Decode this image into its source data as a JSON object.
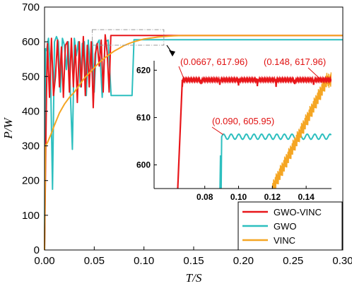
{
  "chart_data": [
    {
      "type": "line",
      "role": "main",
      "xlabel": "T/S",
      "ylabel": "P/W",
      "xlim": [
        0,
        0.3
      ],
      "ylim": [
        0,
        700
      ],
      "xticks": [
        "0.00",
        "0.05",
        "0.10",
        "0.15",
        "0.20",
        "0.25",
        "0.30"
      ],
      "yticks": [
        "0",
        "100",
        "200",
        "300",
        "400",
        "500",
        "600",
        "700"
      ],
      "grid": false,
      "legend_position": "bottom-right",
      "series": [
        {
          "name": "GWO-VINC",
          "color": "#e8161a",
          "x": [
            0,
            0.002,
            0.003,
            0.005,
            0.007,
            0.009,
            0.011,
            0.013,
            0.015,
            0.017,
            0.019,
            0.021,
            0.023,
            0.025,
            0.027,
            0.029,
            0.031,
            0.033,
            0.035,
            0.037,
            0.039,
            0.041,
            0.043,
            0.045,
            0.047,
            0.049,
            0.051,
            0.053,
            0.055,
            0.057,
            0.059,
            0.061,
            0.063,
            0.065,
            0.0667,
            0.08,
            0.1,
            0.12,
            0.14,
            0.148,
            0.16,
            0.18,
            0.2,
            0.22,
            0.24,
            0.26,
            0.28,
            0.3
          ],
          "y": [
            0,
            455,
            595,
            440,
            610,
            445,
            500,
            605,
            470,
            585,
            440,
            590,
            600,
            455,
            610,
            470,
            590,
            425,
            600,
            470,
            615,
            445,
            590,
            470,
            600,
            410,
            565,
            595,
            530,
            605,
            455,
            620,
            570,
            455,
            617.96,
            617.96,
            617.96,
            617.96,
            617.96,
            617.96,
            617.96,
            617.96,
            617.96,
            617.96,
            617.96,
            617.96,
            617.96,
            617.96
          ]
        },
        {
          "name": "GWO",
          "color": "#2dbfbf",
          "x": [
            0,
            0.001,
            0.002,
            0.004,
            0.006,
            0.008,
            0.01,
            0.012,
            0.014,
            0.016,
            0.018,
            0.02,
            0.022,
            0.024,
            0.026,
            0.028,
            0.03,
            0.032,
            0.034,
            0.036,
            0.038,
            0.04,
            0.042,
            0.044,
            0.046,
            0.048,
            0.05,
            0.052,
            0.055,
            0.058,
            0.061,
            0.064,
            0.067,
            0.07,
            0.08,
            0.088,
            0.09,
            0.1,
            0.15,
            0.2,
            0.25,
            0.3
          ],
          "y": [
            0,
            580,
            575,
            610,
            520,
            175,
            600,
            615,
            600,
            455,
            610,
            590,
            520,
            600,
            450,
            290,
            610,
            560,
            600,
            470,
            595,
            600,
            445,
            605,
            520,
            600,
            455,
            590,
            605,
            440,
            600,
            605,
            445,
            445,
            445,
            445,
            605.95,
            605.95,
            605.95,
            605.95,
            605.95,
            605.95
          ]
        },
        {
          "name": "VINC",
          "color": "#f5a623",
          "x": [
            0,
            0.001,
            0.003,
            0.006,
            0.01,
            0.015,
            0.02,
            0.025,
            0.03,
            0.035,
            0.04,
            0.045,
            0.05,
            0.055,
            0.06,
            0.065,
            0.07,
            0.075,
            0.08,
            0.085,
            0.09,
            0.095,
            0.1,
            0.105,
            0.11,
            0.115,
            0.12,
            0.125,
            0.13,
            0.135,
            0.14,
            0.148,
            0.16,
            0.18,
            0.2,
            0.22,
            0.24,
            0.26,
            0.28,
            0.3
          ],
          "y": [
            0,
            300,
            310,
            330,
            360,
            395,
            420,
            440,
            455,
            475,
            495,
            510,
            525,
            540,
            552,
            563,
            573,
            581,
            589,
            595,
            600,
            604,
            608,
            610,
            612,
            614,
            615,
            616,
            617,
            617.5,
            617.8,
            617.96,
            617.96,
            617.96,
            617.96,
            617.96,
            617.96,
            617.96,
            617.96,
            617.96
          ]
        }
      ]
    },
    {
      "type": "line",
      "role": "inset",
      "xlim": [
        0.05,
        0.155
      ],
      "ylim": [
        595,
        622
      ],
      "xticks": [
        "0.08",
        "0.10",
        "0.12",
        "0.14"
      ],
      "yticks": [
        "600",
        "610",
        "620"
      ],
      "annotations": [
        "(0.0667, 617.96)",
        "(0.148, 617.96)",
        "(0.090, 605.95)"
      ],
      "series": [
        {
          "name": "GWO-VINC",
          "color": "#e8161a",
          "x": [
            0.064,
            0.065,
            0.0667,
            0.07,
            0.08,
            0.09,
            0.1,
            0.11,
            0.12,
            0.13,
            0.14,
            0.148,
            0.155
          ],
          "y": [
            595,
            595,
            617.96,
            617.96,
            617.96,
            617.96,
            617.96,
            617.96,
            617.96,
            617.96,
            617.96,
            617.96,
            617.96
          ]
        },
        {
          "name": "GWO",
          "color": "#2dbfbf",
          "x": [
            0.089,
            0.0895,
            0.09,
            0.1,
            0.11,
            0.12,
            0.13,
            0.14,
            0.155
          ],
          "y": [
            595,
            600,
            605.95,
            605.95,
            605.95,
            605.95,
            605.95,
            605.95,
            605.95
          ]
        },
        {
          "name": "VINC",
          "color": "#f5a623",
          "x": [
            0.12,
            0.122,
            0.124,
            0.126,
            0.128,
            0.13,
            0.132,
            0.134,
            0.136,
            0.138,
            0.14,
            0.142,
            0.144,
            0.146,
            0.148,
            0.15,
            0.152,
            0.155
          ],
          "y": [
            595,
            597,
            599,
            601,
            603.5,
            605.5,
            607.5,
            609,
            610.5,
            612,
            613,
            614,
            615,
            616,
            617,
            617.5,
            617.8,
            617.96
          ]
        }
      ]
    }
  ]
}
